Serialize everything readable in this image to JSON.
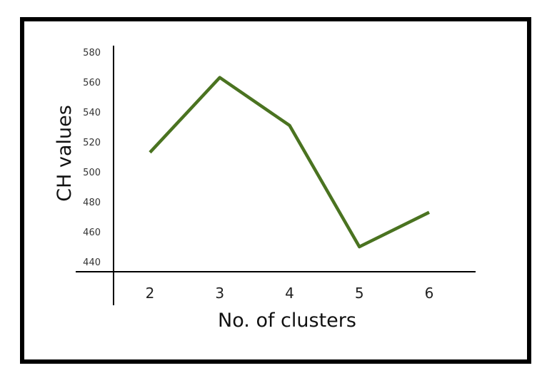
{
  "chart_data": {
    "type": "line",
    "title": "",
    "xlabel": "No. of clusters",
    "ylabel": "CH values",
    "x": [
      2,
      3,
      4,
      5,
      6
    ],
    "categories": [
      "2",
      "3",
      "4",
      "5",
      "6"
    ],
    "series": [
      {
        "values": [
          513,
          563,
          531,
          450,
          473
        ]
      }
    ],
    "yticks": [
      "440",
      "460",
      "480",
      "500",
      "520",
      "540",
      "560",
      "580"
    ],
    "ylim": [
      440,
      580
    ],
    "grid": false,
    "legend": "none",
    "line_color": "#4a7320"
  }
}
